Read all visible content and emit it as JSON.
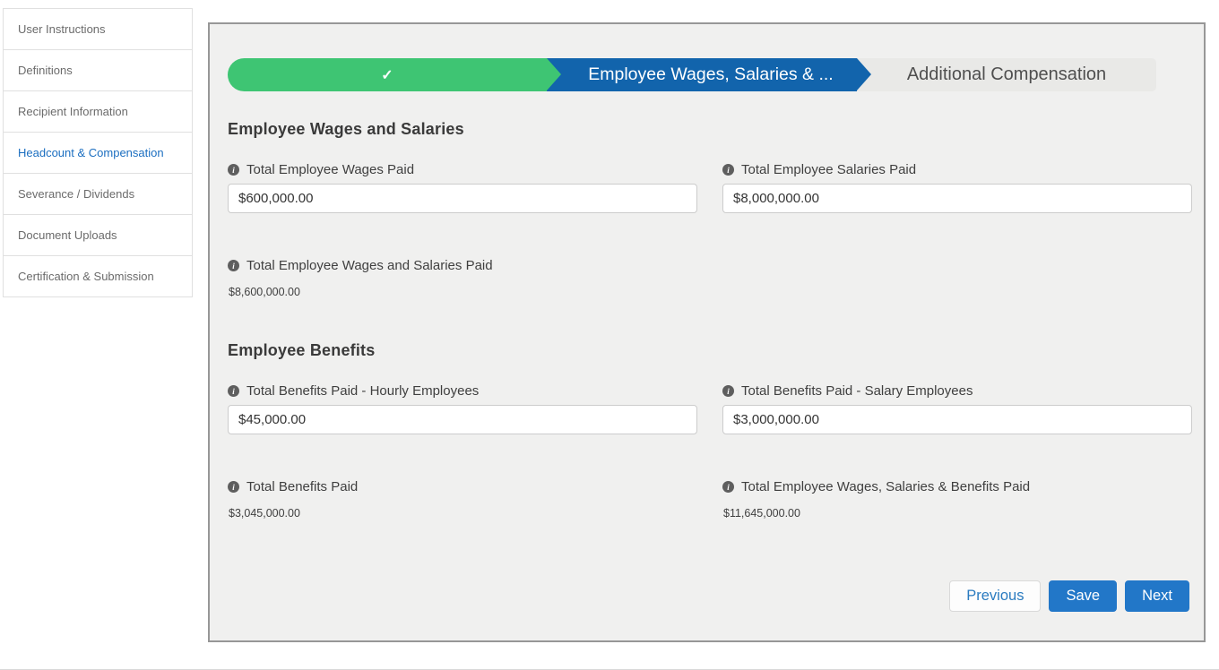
{
  "sidebar": {
    "items": [
      {
        "label": "User Instructions",
        "active": false
      },
      {
        "label": "Definitions",
        "active": false
      },
      {
        "label": "Recipient Information",
        "active": false
      },
      {
        "label": "Headcount & Compensation",
        "active": true
      },
      {
        "label": "Severance / Dividends",
        "active": false
      },
      {
        "label": "Document Uploads",
        "active": false
      },
      {
        "label": "Certification & Submission",
        "active": false
      }
    ]
  },
  "wizard": {
    "completed_check": "✓",
    "current_label": "Employee Wages, Salaries & ...",
    "upcoming_label": "Additional Compensation"
  },
  "icons": {
    "info": "i"
  },
  "sections": {
    "wages": {
      "title": "Employee Wages and Salaries",
      "fields": [
        {
          "label": "Total Employee Wages Paid",
          "value": "$600,000.00"
        },
        {
          "label": "Total Employee Salaries Paid",
          "value": "$8,000,000.00"
        }
      ],
      "total": {
        "label": "Total Employee Wages and Salaries Paid",
        "value": "$8,600,000.00"
      }
    },
    "benefits": {
      "title": "Employee Benefits",
      "fields": [
        {
          "label": "Total Benefits Paid - Hourly Employees",
          "value": "$45,000.00"
        },
        {
          "label": "Total Benefits Paid - Salary Employees",
          "value": "$3,000,000.00"
        }
      ],
      "total_benefits": {
        "label": "Total Benefits Paid",
        "value": "$3,045,000.00"
      },
      "grand_total": {
        "label": "Total Employee Wages, Salaries & Benefits Paid",
        "value": "$11,645,000.00"
      }
    }
  },
  "buttons": {
    "previous": "Previous",
    "save": "Save",
    "next": "Next"
  },
  "colors": {
    "progress_green": "#3ec573",
    "progress_blue": "#1264ac",
    "button_blue": "#2277c8",
    "active_nav_blue": "#1b6ec0",
    "panel_background": "#f0f0ef"
  }
}
